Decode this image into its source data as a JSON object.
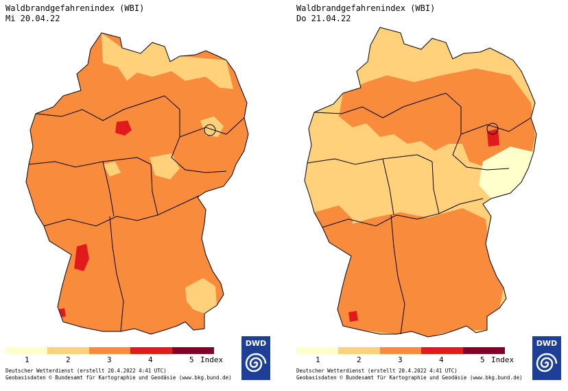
{
  "panels": [
    {
      "title": "Waldbrandgefahrenindex (WBI)",
      "date": "Mi 20.04.22",
      "credit_line1": "Deutscher Wetterdienst (erstellt 20.4.2022 4:41 UTC)",
      "credit_line2": "Geobasisdaten © Bundesamt für Kartographie und Geodäsie (www.bkg.bund.de)",
      "logo_text": "DWD",
      "base_level": 3,
      "overlays": [
        {
          "level": 2,
          "region": "north-sea-coast"
        },
        {
          "level": 2,
          "region": "east-patches"
        },
        {
          "level": 2,
          "region": "center-spots"
        },
        {
          "level": 2,
          "region": "alps-southeast"
        },
        {
          "level": 4,
          "region": "lower-saxony-east"
        },
        {
          "level": 4,
          "region": "upper-rhine"
        },
        {
          "level": 4,
          "region": "black-forest-southwest"
        }
      ]
    },
    {
      "title": "Waldbrandgefahrenindex (WBI)",
      "date": "Do 21.04.22",
      "credit_line1": "Deutscher Wetterdienst (erstellt 20.4.2022 4:41 UTC)",
      "credit_line2": "Geobasisdaten © Bundesamt für Kartographie und Geodäsie (www.bkg.bund.de)",
      "logo_text": "DWD",
      "base_level": 2,
      "overlays": [
        {
          "level": 3,
          "region": "northeast-large"
        },
        {
          "level": 3,
          "region": "south-large"
        },
        {
          "level": 3,
          "region": "southwest"
        },
        {
          "level": 3,
          "region": "north-middle"
        },
        {
          "level": 1,
          "region": "saxony"
        },
        {
          "level": 4,
          "region": "brandenburg-center"
        },
        {
          "level": 4,
          "region": "black-forest-southwest"
        }
      ]
    }
  ],
  "legend": {
    "labels": [
      "1",
      "2",
      "3",
      "4",
      "5"
    ],
    "unit": "Index",
    "colors": [
      "#ffffcc",
      "#fed17a",
      "#f98b3c",
      "#e31a1c",
      "#800026"
    ]
  }
}
